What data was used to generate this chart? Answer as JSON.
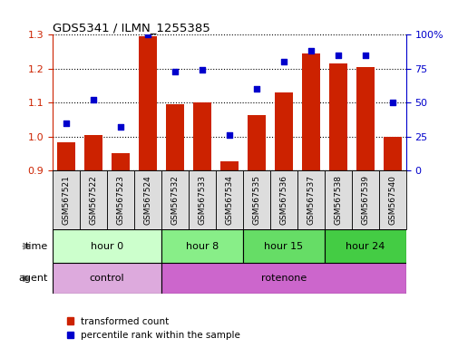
{
  "title": "GDS5341 / ILMN_1255385",
  "samples": [
    "GSM567521",
    "GSM567522",
    "GSM567523",
    "GSM567524",
    "GSM567532",
    "GSM567533",
    "GSM567534",
    "GSM567535",
    "GSM567536",
    "GSM567537",
    "GSM567538",
    "GSM567539",
    "GSM567540"
  ],
  "bar_values": [
    0.983,
    1.005,
    0.95,
    1.295,
    1.095,
    1.1,
    0.927,
    1.063,
    1.13,
    1.245,
    1.215,
    1.205,
    0.998
  ],
  "scatter_values": [
    35,
    52,
    32,
    100,
    73,
    74,
    26,
    60,
    80,
    88,
    85,
    85,
    50
  ],
  "ylim_left": [
    0.9,
    1.3
  ],
  "ylim_right": [
    0,
    100
  ],
  "yticks_left": [
    0.9,
    1.0,
    1.1,
    1.2,
    1.3
  ],
  "yticks_right": [
    0,
    25,
    50,
    75,
    100
  ],
  "bar_color": "#cc2200",
  "scatter_color": "#0000cc",
  "time_groups": [
    {
      "label": "hour 0",
      "start": 0,
      "end": 4,
      "color": "#ccffcc"
    },
    {
      "label": "hour 8",
      "start": 4,
      "end": 7,
      "color": "#88ee88"
    },
    {
      "label": "hour 15",
      "start": 7,
      "end": 10,
      "color": "#66dd66"
    },
    {
      "label": "hour 24",
      "start": 10,
      "end": 13,
      "color": "#44cc44"
    }
  ],
  "agent_groups": [
    {
      "label": "control",
      "start": 0,
      "end": 4,
      "color": "#ddaadd"
    },
    {
      "label": "rotenone",
      "start": 4,
      "end": 13,
      "color": "#cc66cc"
    }
  ],
  "sample_box_color": "#dddddd",
  "legend_bar_label": "transformed count",
  "legend_scatter_label": "percentile rank within the sample",
  "time_label": "time",
  "agent_label": "agent",
  "background_color": "#ffffff"
}
